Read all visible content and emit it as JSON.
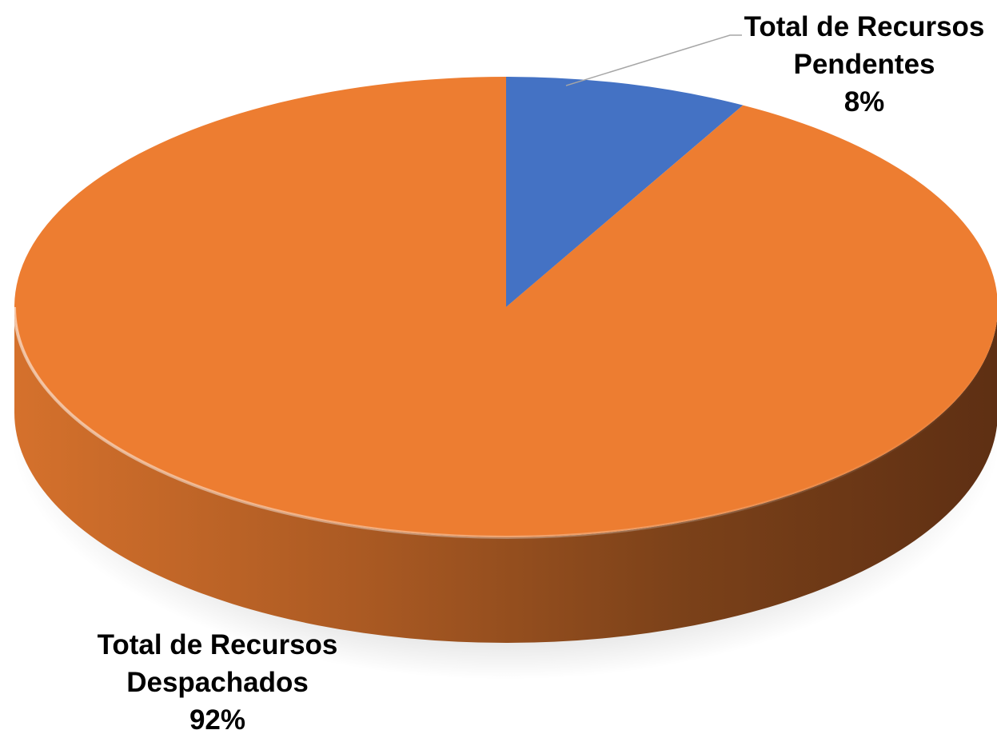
{
  "chart_data": {
    "type": "pie",
    "style": "3d",
    "slices": [
      {
        "label_line1": "Total de Recursos",
        "label_line2": "Pendentes",
        "value": 8,
        "value_label": "8%",
        "color": "#4472C4"
      },
      {
        "label_line1": "Total de Recursos",
        "label_line2": "Despachados",
        "value": 92,
        "value_label": "92%",
        "color": "#ED7D31"
      }
    ],
    "side_dark_color": "#5E2F13",
    "leader_line_color": "#A6A6A6",
    "legend": "none"
  }
}
